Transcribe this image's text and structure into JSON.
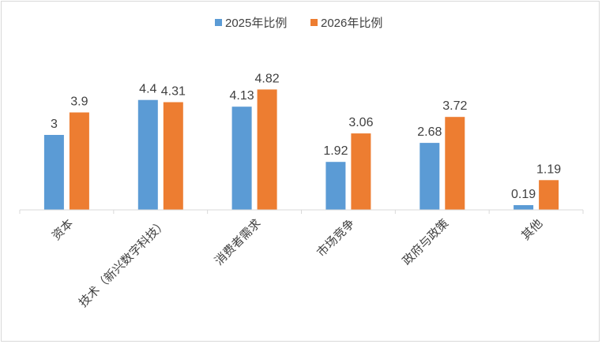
{
  "chart_data": {
    "type": "bar",
    "categories": [
      "资本",
      "技术（新兴数字科技）",
      "消费者需求",
      "市场竞争",
      "政府与政策",
      "其他"
    ],
    "series": [
      {
        "name": "2025年比例",
        "values": [
          3,
          4.4,
          4.13,
          1.92,
          2.68,
          0.19
        ],
        "labels": [
          "3",
          "4.4",
          "4.13",
          "1.92",
          "2.68",
          "0.19"
        ],
        "color": "#5b9bd5"
      },
      {
        "name": "2026年比例",
        "values": [
          3.9,
          4.31,
          4.82,
          3.06,
          3.72,
          1.19
        ],
        "labels": [
          "3.9",
          "4.31",
          "4.82",
          "3.06",
          "3.72",
          "1.19"
        ],
        "color": "#ed7d31"
      }
    ],
    "ylim": [
      0,
      5.4
    ],
    "legend": "top-center",
    "grid": false
  }
}
